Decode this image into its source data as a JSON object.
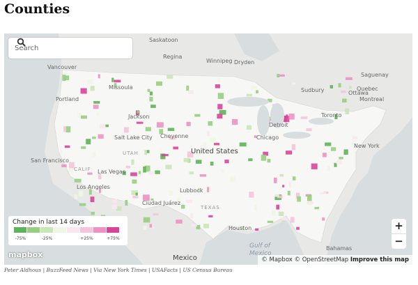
{
  "title": "Counties",
  "search": {
    "placeholder": "Search"
  },
  "legend": {
    "title": "Change in last 14 days",
    "colors": [
      "#5fb35a",
      "#97ce82",
      "#c9e6b6",
      "#eef6e4",
      "#fbe5ef",
      "#f5c4dc",
      "#ec92c3",
      "#d8449a"
    ],
    "labels": [
      "-75%",
      "-25%",
      "+25%",
      "+75%"
    ]
  },
  "places": [
    "Saskatoon",
    "Regina",
    "Winnipeg",
    "Dryden",
    "Vancouver",
    "Portland",
    "Missoula",
    "Jackson",
    "Salt Lake City",
    "Cheyenne",
    "UTAH",
    "San Francisco",
    "CALIF",
    "Las Vegas",
    "Los Angeles",
    "United States",
    "Chicago",
    "Detroit",
    "Toronto",
    "Ottawa",
    "Montreal",
    "Quebec",
    "Saguenay",
    "Sudbury",
    "New York",
    "Lubbock",
    "Ciudad Juárez",
    "Houston",
    "TEXAS",
    "Mexico",
    "Gulf of",
    "Mexico",
    "Bahamas"
  ],
  "controls": {
    "zoom_in": "+",
    "zoom_out": "−"
  },
  "attribution": {
    "logo": "mapbox",
    "mapbox": "© Mapbox",
    "osm": "© OpenStreetMap",
    "improve": "Improve this map"
  },
  "credit": "Peter Aldhous | BuzzFeed News | Via New York Times | USAFacts | US Census Bureau"
}
